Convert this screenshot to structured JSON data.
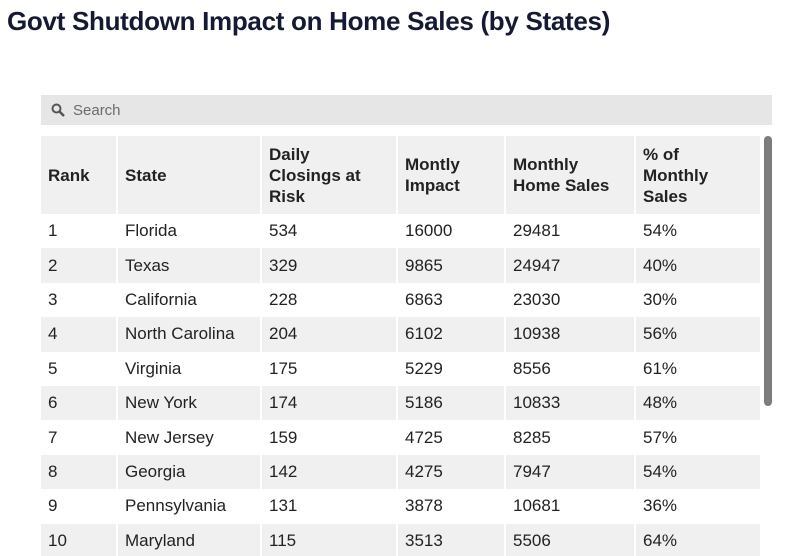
{
  "title": "Govt Shutdown Impact on Home Sales (by States)",
  "search": {
    "placeholder": "Search"
  },
  "table": {
    "headers": [
      "Rank",
      "State",
      "Daily Closings at Risk",
      "Montly Impact",
      "Monthly Home Sales",
      "% of Monthly Sales"
    ],
    "rows": [
      [
        "1",
        "Florida",
        "534",
        "16000",
        "29481",
        "54%"
      ],
      [
        "2",
        "Texas",
        "329",
        "9865",
        "24947",
        "40%"
      ],
      [
        "3",
        "California",
        "228",
        "6863",
        "23030",
        "30%"
      ],
      [
        "4",
        "North Carolina",
        "204",
        "6102",
        "10938",
        "56%"
      ],
      [
        "5",
        "Virginia",
        "175",
        "5229",
        "8556",
        "61%"
      ],
      [
        "6",
        "New York",
        "174",
        "5186",
        "10833",
        "48%"
      ],
      [
        "7",
        "New Jersey",
        "159",
        "4725",
        "8285",
        "57%"
      ],
      [
        "8",
        "Georgia",
        "142",
        "4275",
        "7947",
        "54%"
      ],
      [
        "9",
        "Pennsylvania",
        "131",
        "3878",
        "10681",
        "36%"
      ],
      [
        "10",
        "Maryland",
        "115",
        "3513",
        "5506",
        "64%"
      ]
    ]
  }
}
